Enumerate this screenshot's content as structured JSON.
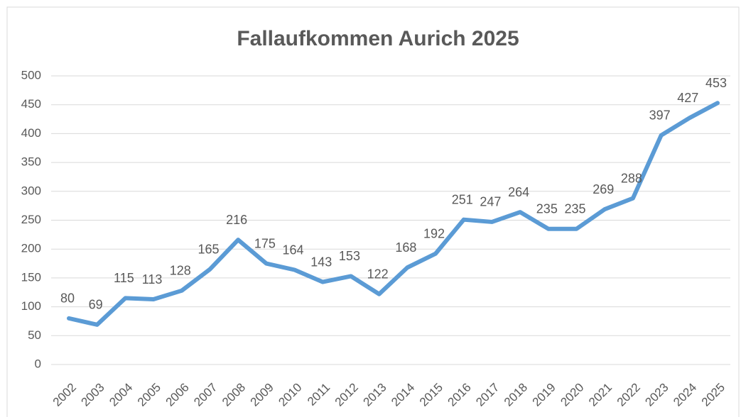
{
  "chart_data": {
    "type": "line",
    "title": "Fallaufkommen Aurich 2025",
    "categories": [
      "2002",
      "2003",
      "2004",
      "2005",
      "2006",
      "2007",
      "2008",
      "2009",
      "2010",
      "2011",
      "2012",
      "2013",
      "2014",
      "2015",
      "2016",
      "2017",
      "2018",
      "2019",
      "2020",
      "2021",
      "2022",
      "2023",
      "2024",
      "2025"
    ],
    "series": [
      {
        "name": "Fallaufkommen",
        "color": "#5b9bd5",
        "values": [
          80,
          69,
          115,
          113,
          128,
          165,
          216,
          175,
          164,
          143,
          153,
          122,
          168,
          192,
          251,
          247,
          264,
          235,
          235,
          269,
          288,
          397,
          427,
          453
        ]
      }
    ],
    "ylim": [
      0,
      500
    ],
    "yticks": [
      0,
      50,
      100,
      150,
      200,
      250,
      300,
      350,
      400,
      450,
      500
    ],
    "grid": true
  }
}
